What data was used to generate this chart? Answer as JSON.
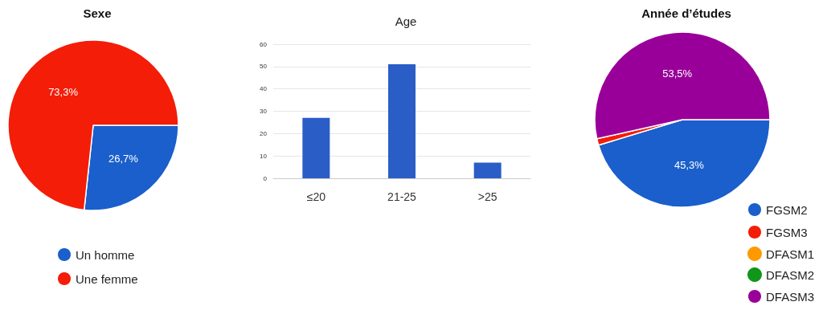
{
  "chart_data": [
    {
      "type": "pie",
      "title": "Sexe",
      "categories": [
        "Un homme",
        "Une femme"
      ],
      "values": [
        26.7,
        73.3
      ],
      "colors": [
        "#1a5fcb",
        "#f31d08"
      ],
      "value_labels": [
        "26,7%",
        "73,3%"
      ],
      "legend": "bottom"
    },
    {
      "type": "bar",
      "title": "Age",
      "categories": [
        "≤20",
        "21-25",
        ">25"
      ],
      "values": [
        27,
        51,
        7
      ],
      "color": "#2a5dc6",
      "ylim": [
        0,
        60
      ],
      "yticks": [
        0,
        10,
        20,
        30,
        40,
        50,
        60
      ],
      "grid": "y"
    },
    {
      "type": "pie",
      "title": "Année d’études",
      "categories": [
        "FGSM2",
        "FGSM3",
        "DFASM1",
        "DFASM2",
        "DFASM3"
      ],
      "values": [
        45.3,
        1.2,
        0,
        0,
        53.5
      ],
      "colors": [
        "#1a5fcb",
        "#f31d08",
        "#ff9900",
        "#109618",
        "#990099"
      ],
      "value_labels": [
        "45,3%",
        null,
        null,
        null,
        "53,5%"
      ],
      "legend": "bottom right"
    }
  ]
}
